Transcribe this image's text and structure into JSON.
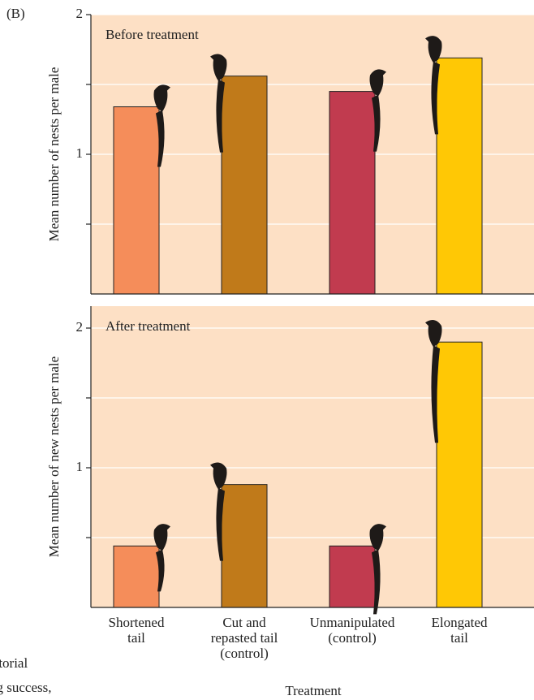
{
  "panel_label": "(B)",
  "x_label": "Treatment",
  "caption_fragments": [
    "territorial",
    "ating success,"
  ],
  "chart_data": [
    {
      "type": "bar",
      "annotation": "Before treatment",
      "y_label": "Mean number of nests per male",
      "categories": [
        [
          "Shortened",
          "tail"
        ],
        [
          "Cut and",
          "repasted tail",
          "(control)"
        ],
        [
          "Unmanipulated",
          "(control)"
        ],
        [
          "Elongated",
          "tail"
        ]
      ],
      "values": [
        1.34,
        1.56,
        1.45,
        1.69
      ],
      "colors": [
        "#f58d5a",
        "#c07a1a",
        "#c13b4f",
        "#ffc805"
      ],
      "ylim": [
        0,
        2
      ],
      "yticks": [
        1,
        2
      ],
      "minor_yticks": [
        0.5,
        1.5
      ],
      "grid": true,
      "background": "#fde0c5"
    },
    {
      "type": "bar",
      "annotation": "After treatment",
      "y_label": "Mean number of new nests per male",
      "categories": [
        [
          "Shortened",
          "tail"
        ],
        [
          "Cut and",
          "repasted tail",
          "(control)"
        ],
        [
          "Unmanipulated",
          "(control)"
        ],
        [
          "Elongated",
          "tail"
        ]
      ],
      "values": [
        0.44,
        0.88,
        0.44,
        1.9
      ],
      "colors": [
        "#f58d5a",
        "#c07a1a",
        "#c13b4f",
        "#ffc805"
      ],
      "ylim": [
        0,
        2
      ],
      "yticks": [
        1,
        2
      ],
      "minor_yticks": [
        0.5,
        1.5
      ],
      "grid": true,
      "background": "#fde0c5"
    }
  ]
}
